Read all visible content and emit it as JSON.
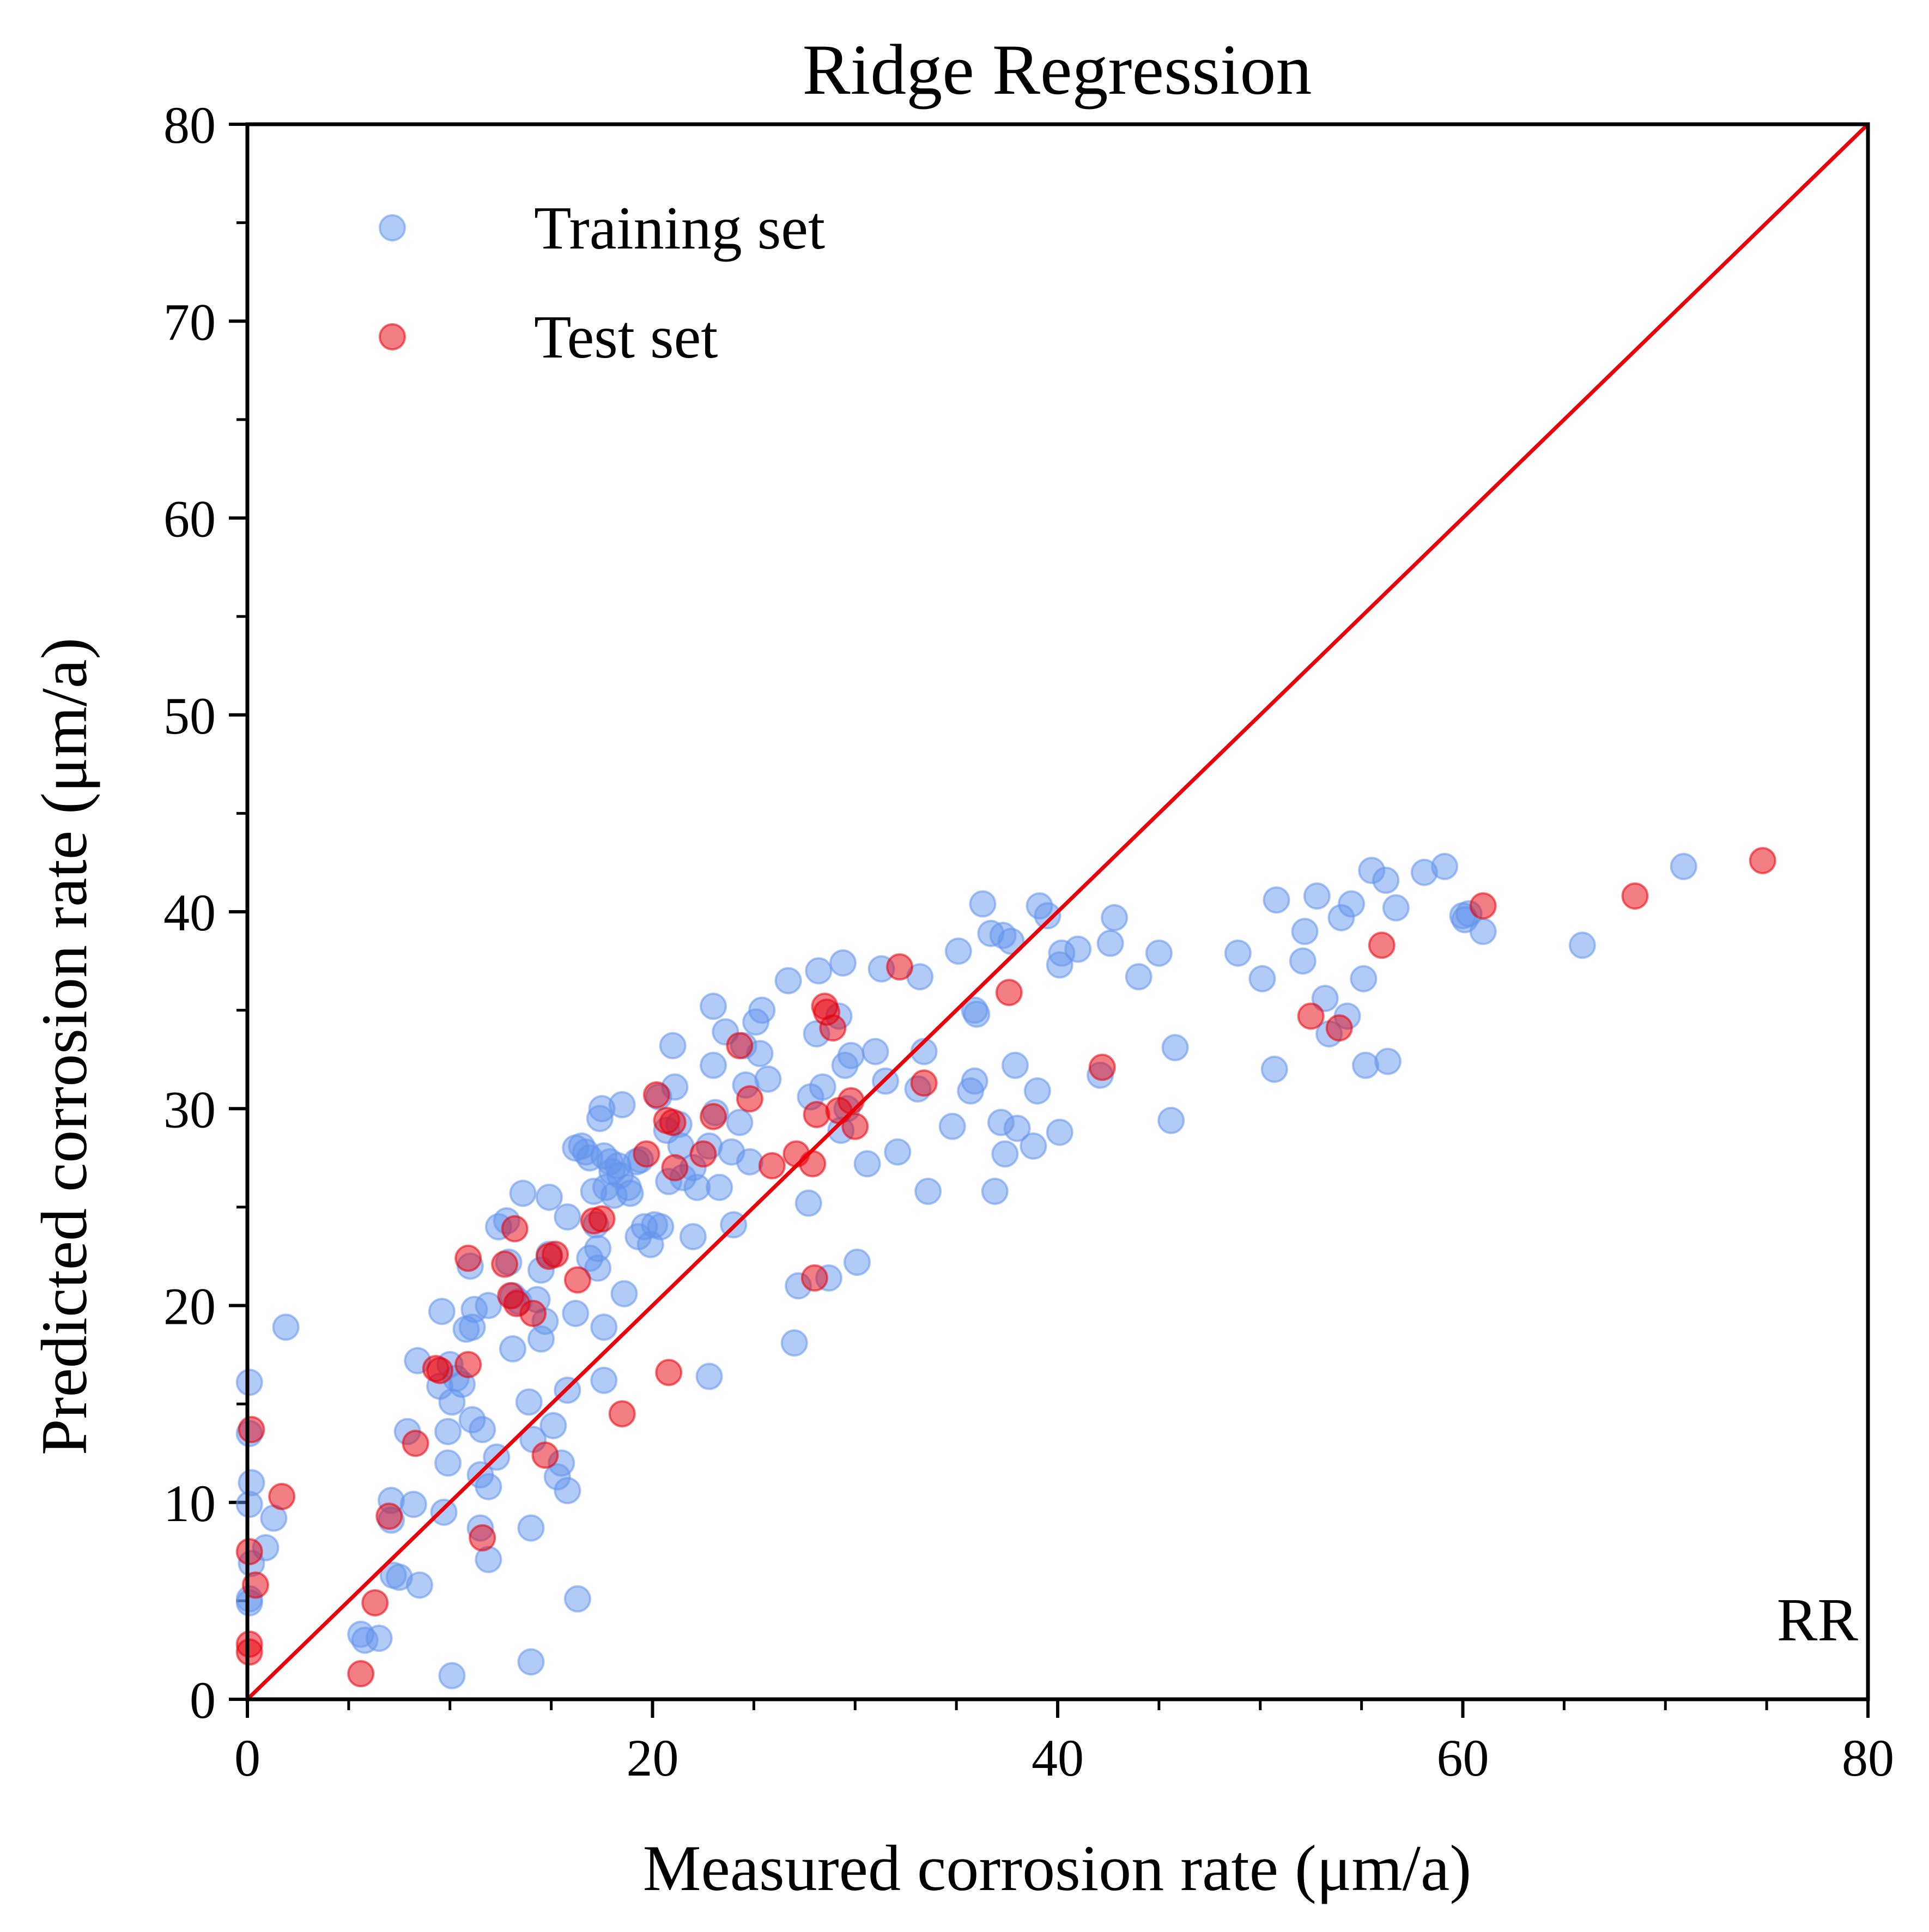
{
  "chart_data": {
    "type": "scatter",
    "title": "Ridge Regression",
    "xlabel": "Measured corrosion rate (μm/a)",
    "ylabel": "Predicted corrosion rate (μm/a)",
    "xlim": [
      0,
      80
    ],
    "ylim": [
      0,
      80
    ],
    "xticks": [
      0,
      20,
      40,
      60,
      80
    ],
    "yticks": [
      0,
      10,
      20,
      30,
      40,
      50,
      60,
      70,
      80
    ],
    "grid": false,
    "legend_position": "upper-left",
    "annotation": "RR",
    "reference_line": {
      "from": [
        0,
        0
      ],
      "to": [
        80,
        80
      ],
      "color": "#e8000b"
    },
    "series": [
      {
        "name": "Training set",
        "color": "#6495ed",
        "points": [
          [
            0.1,
            16.1
          ],
          [
            0.1,
            13.5
          ],
          [
            0.2,
            11.0
          ],
          [
            0.1,
            9.9
          ],
          [
            0.2,
            6.9
          ],
          [
            0.1,
            5.1
          ],
          [
            0.1,
            4.9
          ],
          [
            0.9,
            7.7
          ],
          [
            1.3,
            9.2
          ],
          [
            1.9,
            18.9
          ],
          [
            5.6,
            3.3
          ],
          [
            5.8,
            3.0
          ],
          [
            6.5,
            3.1
          ],
          [
            7.1,
            10.1
          ],
          [
            7.1,
            9.1
          ],
          [
            7.2,
            6.3
          ],
          [
            7.5,
            6.2
          ],
          [
            7.9,
            13.6
          ],
          [
            8.2,
            9.9
          ],
          [
            8.5,
            5.8
          ],
          [
            8.4,
            17.2
          ],
          [
            9.5,
            15.9
          ],
          [
            9.6,
            19.7
          ],
          [
            9.7,
            9.5
          ],
          [
            9.9,
            13.6
          ],
          [
            9.9,
            12.0
          ],
          [
            10.0,
            17.0
          ],
          [
            10.1,
            15.1
          ],
          [
            10.1,
            1.2
          ],
          [
            10.3,
            16.3
          ],
          [
            10.6,
            16.0
          ],
          [
            10.8,
            18.8
          ],
          [
            11.0,
            22.0
          ],
          [
            11.1,
            18.9
          ],
          [
            11.1,
            14.2
          ],
          [
            11.2,
            19.8
          ],
          [
            11.5,
            11.4
          ],
          [
            11.5,
            8.7
          ],
          [
            11.6,
            13.7
          ],
          [
            11.9,
            20.0
          ],
          [
            11.9,
            10.8
          ],
          [
            11.9,
            7.1
          ],
          [
            12.3,
            12.3
          ],
          [
            12.4,
            24.0
          ],
          [
            12.8,
            24.3
          ],
          [
            12.9,
            22.2
          ],
          [
            13.1,
            17.8
          ],
          [
            13.1,
            20.5
          ],
          [
            13.4,
            20.2
          ],
          [
            13.6,
            25.7
          ],
          [
            13.9,
            15.1
          ],
          [
            14.0,
            8.7
          ],
          [
            14.0,
            1.9
          ],
          [
            14.1,
            13.2
          ],
          [
            14.3,
            20.3
          ],
          [
            14.5,
            18.3
          ],
          [
            14.5,
            21.8
          ],
          [
            14.7,
            19.2
          ],
          [
            14.9,
            25.5
          ],
          [
            14.9,
            22.6
          ],
          [
            15.1,
            13.9
          ],
          [
            15.3,
            11.3
          ],
          [
            15.5,
            12.0
          ],
          [
            15.8,
            10.6
          ],
          [
            15.8,
            15.7
          ],
          [
            15.8,
            24.5
          ],
          [
            16.2,
            28.0
          ],
          [
            16.2,
            19.6
          ],
          [
            16.3,
            5.1
          ],
          [
            16.5,
            28.1
          ],
          [
            16.7,
            27.8
          ],
          [
            16.9,
            27.5
          ],
          [
            16.9,
            22.4
          ],
          [
            17.1,
            25.8
          ],
          [
            17.2,
            24.1
          ],
          [
            17.3,
            22.9
          ],
          [
            17.3,
            21.9
          ],
          [
            17.4,
            29.5
          ],
          [
            17.5,
            30.0
          ],
          [
            17.6,
            27.6
          ],
          [
            17.6,
            16.2
          ],
          [
            17.6,
            18.9
          ],
          [
            17.7,
            26.0
          ],
          [
            17.9,
            27.3
          ],
          [
            18.0,
            26.8
          ],
          [
            18.1,
            25.6
          ],
          [
            18.3,
            27.1
          ],
          [
            18.4,
            26.6
          ],
          [
            18.5,
            30.2
          ],
          [
            18.6,
            20.6
          ],
          [
            18.8,
            26.0
          ],
          [
            18.9,
            25.7
          ],
          [
            19.2,
            27.3
          ],
          [
            19.3,
            23.5
          ],
          [
            19.4,
            27.4
          ],
          [
            19.6,
            24.0
          ],
          [
            19.9,
            23.1
          ],
          [
            20.1,
            24.1
          ],
          [
            20.3,
            30.6
          ],
          [
            20.4,
            24.0
          ],
          [
            20.7,
            28.9
          ],
          [
            20.8,
            26.3
          ],
          [
            21.0,
            33.2
          ],
          [
            21.1,
            31.1
          ],
          [
            21.3,
            29.2
          ],
          [
            21.4,
            28.1
          ],
          [
            21.5,
            26.5
          ],
          [
            22.0,
            27.0
          ],
          [
            22.0,
            23.5
          ],
          [
            22.2,
            26.0
          ],
          [
            22.8,
            16.4
          ],
          [
            22.8,
            28.1
          ],
          [
            23.0,
            35.2
          ],
          [
            23.0,
            32.2
          ],
          [
            23.1,
            29.8
          ],
          [
            23.3,
            26.0
          ],
          [
            23.6,
            33.9
          ],
          [
            23.9,
            27.8
          ],
          [
            24.0,
            24.1
          ],
          [
            24.3,
            29.3
          ],
          [
            24.5,
            33.2
          ],
          [
            24.6,
            31.2
          ],
          [
            24.8,
            27.3
          ],
          [
            25.1,
            34.4
          ],
          [
            25.3,
            32.8
          ],
          [
            25.4,
            35.0
          ],
          [
            25.7,
            31.5
          ],
          [
            26.7,
            36.5
          ],
          [
            27.0,
            18.1
          ],
          [
            27.2,
            21.0
          ],
          [
            27.7,
            25.2
          ],
          [
            27.8,
            30.6
          ],
          [
            28.1,
            33.8
          ],
          [
            28.2,
            37.0
          ],
          [
            28.4,
            31.1
          ],
          [
            28.7,
            21.4
          ],
          [
            29.2,
            34.7
          ],
          [
            29.3,
            28.9
          ],
          [
            29.4,
            37.4
          ],
          [
            29.5,
            32.2
          ],
          [
            29.6,
            30.0
          ],
          [
            29.8,
            32.7
          ],
          [
            30.1,
            22.2
          ],
          [
            30.6,
            27.2
          ],
          [
            31.0,
            32.9
          ],
          [
            31.3,
            37.1
          ],
          [
            31.5,
            31.4
          ],
          [
            32.1,
            27.8
          ],
          [
            33.1,
            31.0
          ],
          [
            33.2,
            36.7
          ],
          [
            33.4,
            32.9
          ],
          [
            33.6,
            25.8
          ],
          [
            34.8,
            29.1
          ],
          [
            35.1,
            38.0
          ],
          [
            35.7,
            30.9
          ],
          [
            35.9,
            31.4
          ],
          [
            35.9,
            35.0
          ],
          [
            36.0,
            34.8
          ],
          [
            36.3,
            40.4
          ],
          [
            36.7,
            38.9
          ],
          [
            36.9,
            25.8
          ],
          [
            37.2,
            29.3
          ],
          [
            37.3,
            38.8
          ],
          [
            37.4,
            27.7
          ],
          [
            37.7,
            38.5
          ],
          [
            37.9,
            32.2
          ],
          [
            38.0,
            29.0
          ],
          [
            38.8,
            28.1
          ],
          [
            39.0,
            30.9
          ],
          [
            39.1,
            40.3
          ],
          [
            39.5,
            39.8
          ],
          [
            40.1,
            28.8
          ],
          [
            40.1,
            37.3
          ],
          [
            40.2,
            37.9
          ],
          [
            41.0,
            38.1
          ],
          [
            42.1,
            31.7
          ],
          [
            42.6,
            38.4
          ],
          [
            42.8,
            39.7
          ],
          [
            44.0,
            36.7
          ],
          [
            45.0,
            37.9
          ],
          [
            45.6,
            29.4
          ],
          [
            45.8,
            33.1
          ],
          [
            48.9,
            37.9
          ],
          [
            50.1,
            36.6
          ],
          [
            50.7,
            32.0
          ],
          [
            50.8,
            40.6
          ],
          [
            52.1,
            37.5
          ],
          [
            52.2,
            39.0
          ],
          [
            52.8,
            40.8
          ],
          [
            53.2,
            35.6
          ],
          [
            53.4,
            33.8
          ],
          [
            54.0,
            39.7
          ],
          [
            54.3,
            34.7
          ],
          [
            54.5,
            40.4
          ],
          [
            55.1,
            36.6
          ],
          [
            55.2,
            32.2
          ],
          [
            55.5,
            42.1
          ],
          [
            56.2,
            41.6
          ],
          [
            56.3,
            32.4
          ],
          [
            56.7,
            40.2
          ],
          [
            58.1,
            42.0
          ],
          [
            59.1,
            42.3
          ],
          [
            60.0,
            39.8
          ],
          [
            60.1,
            39.6
          ],
          [
            60.3,
            39.9
          ],
          [
            61.0,
            39.0
          ],
          [
            65.9,
            38.3
          ],
          [
            70.9,
            42.3
          ]
        ]
      },
      {
        "name": "Test set",
        "color": "#e8000b",
        "points": [
          [
            0.2,
            13.7
          ],
          [
            0.1,
            7.5
          ],
          [
            0.4,
            5.8
          ],
          [
            0.1,
            2.8
          ],
          [
            0.1,
            2.4
          ],
          [
            1.7,
            10.3
          ],
          [
            5.6,
            1.3
          ],
          [
            6.3,
            4.9
          ],
          [
            7.0,
            9.3
          ],
          [
            8.3,
            13.0
          ],
          [
            9.3,
            16.8
          ],
          [
            9.5,
            16.7
          ],
          [
            10.9,
            22.4
          ],
          [
            10.9,
            17.0
          ],
          [
            11.6,
            8.2
          ],
          [
            12.7,
            22.1
          ],
          [
            13.0,
            20.5
          ],
          [
            13.2,
            23.9
          ],
          [
            13.3,
            20.1
          ],
          [
            14.1,
            19.6
          ],
          [
            14.7,
            12.4
          ],
          [
            14.9,
            22.5
          ],
          [
            15.2,
            22.6
          ],
          [
            16.3,
            21.3
          ],
          [
            17.1,
            24.3
          ],
          [
            17.5,
            24.4
          ],
          [
            18.5,
            14.5
          ],
          [
            19.7,
            27.7
          ],
          [
            20.2,
            30.7
          ],
          [
            20.7,
            29.4
          ],
          [
            20.8,
            16.6
          ],
          [
            21.0,
            29.3
          ],
          [
            21.1,
            27.0
          ],
          [
            22.5,
            27.7
          ],
          [
            23.0,
            29.6
          ],
          [
            24.3,
            33.2
          ],
          [
            24.8,
            30.5
          ],
          [
            25.9,
            27.1
          ],
          [
            27.1,
            27.7
          ],
          [
            27.9,
            27.2
          ],
          [
            28.0,
            21.4
          ],
          [
            28.1,
            29.7
          ],
          [
            28.5,
            35.2
          ],
          [
            28.6,
            34.9
          ],
          [
            28.9,
            34.1
          ],
          [
            29.2,
            29.9
          ],
          [
            29.8,
            30.4
          ],
          [
            30.0,
            29.1
          ],
          [
            32.2,
            37.2
          ],
          [
            33.4,
            31.3
          ],
          [
            37.6,
            35.9
          ],
          [
            42.2,
            32.1
          ],
          [
            52.5,
            34.7
          ],
          [
            53.9,
            34.1
          ],
          [
            56.0,
            38.3
          ],
          [
            61.0,
            40.3
          ],
          [
            68.5,
            40.8
          ],
          [
            74.8,
            42.6
          ]
        ]
      }
    ]
  }
}
